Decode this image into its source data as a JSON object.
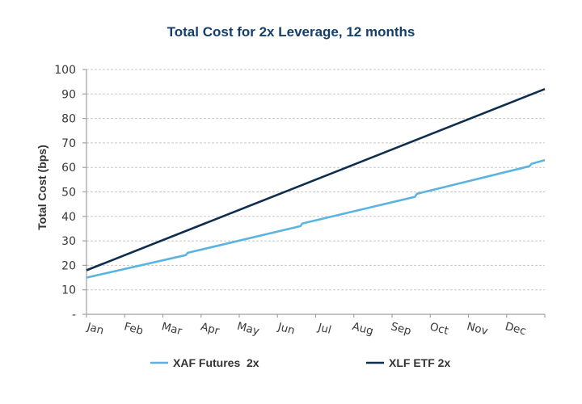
{
  "chart_data": {
    "type": "line",
    "title": "Total Cost for 2x Leverage, 12 months",
    "xlabel": "",
    "ylabel": "Total Cost (bps)",
    "ylim": [
      0,
      100
    ],
    "yticks": [
      {
        "value": 0,
        "label": "-"
      },
      {
        "value": 10,
        "label": "10"
      },
      {
        "value": 20,
        "label": "20"
      },
      {
        "value": 30,
        "label": "30"
      },
      {
        "value": 40,
        "label": "40"
      },
      {
        "value": 50,
        "label": "50"
      },
      {
        "value": 60,
        "label": "60"
      },
      {
        "value": 70,
        "label": "70"
      },
      {
        "value": 80,
        "label": "80"
      },
      {
        "value": 90,
        "label": "90"
      },
      {
        "value": 100,
        "label": "100"
      }
    ],
    "categories": [
      "Jan",
      "Feb",
      "Mar",
      "Apr",
      "May",
      "Jun",
      "Jul",
      "Aug",
      "Sep",
      "Oct",
      "Nov",
      "Dec"
    ],
    "xlim": [
      0,
      12
    ],
    "grid": true,
    "legend_position": "bottom",
    "series": [
      {
        "name": "XAF Futures  2x",
        "color": "#5bb4e0",
        "points": [
          [
            0,
            15
          ],
          [
            2.6,
            24.2
          ],
          [
            2.65,
            25.1
          ],
          [
            5.6,
            36.0
          ],
          [
            5.65,
            37.1
          ],
          [
            8.6,
            48.0
          ],
          [
            8.65,
            49.2
          ],
          [
            11.6,
            60.5
          ],
          [
            11.65,
            61.5
          ],
          [
            12,
            63
          ]
        ]
      },
      {
        "name": "XLF ETF 2x",
        "color": "#0f2d4e",
        "points": [
          [
            0,
            18
          ],
          [
            12,
            92
          ]
        ]
      }
    ]
  }
}
